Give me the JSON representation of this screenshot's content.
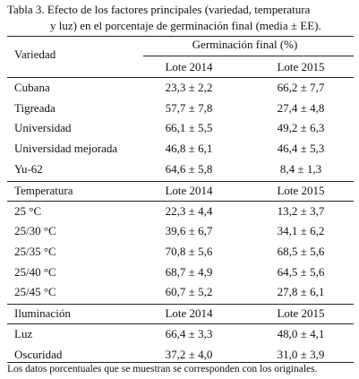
{
  "caption": [
    "Tabla 3. Efecto de los factores principales (variedad, temperatura",
    "y luz) en el porcentaje de germinación final (media ± EE)."
  ],
  "table": {
    "group_header": "Germinación final (%)",
    "sections": [
      {
        "label": "Variedad",
        "columns": [
          "Lote 2014",
          "Lote 2015"
        ],
        "rows": [
          [
            "Cubana",
            "23,3 ± 2,2",
            "66,2 ± 7,7"
          ],
          [
            "Tigreada",
            "57,7 ± 7,8",
            "27,4 ± 4,8"
          ],
          [
            "Universidad",
            "66,1 ± 5,5",
            "49,2 ± 6,3"
          ],
          [
            "Universidad mejorada",
            "46,8 ± 6,1",
            "46,4 ± 5,3"
          ],
          [
            "Yu-62",
            "64,6 ± 5,8",
            "8,4 ± 1,3"
          ]
        ]
      },
      {
        "label": "Temperatura",
        "columns": [
          "Lote 2014",
          "Lote 2015"
        ],
        "rows": [
          [
            "25 °C",
            "22,3 ± 4,4",
            "13,2 ± 3,7"
          ],
          [
            "25/30 °C",
            "39,6 ± 6,7",
            "34,1 ± 6,2"
          ],
          [
            "25/35 °C",
            "70,8 ± 5,6",
            "68,5 ± 5,6"
          ],
          [
            "25/40 °C",
            "68,7 ± 4,9",
            "64,5 ± 5,6"
          ],
          [
            "25/45 °C",
            "60,7 ± 5,2",
            "27,8 ± 6,1"
          ]
        ]
      },
      {
        "label": "Iluminación",
        "columns": [
          "Lote 2014",
          "Lote 2015"
        ],
        "rows": [
          [
            "Luz",
            "66,4 ± 3,3",
            "48,0 ± 4,1"
          ],
          [
            "Oscuridad",
            "37,2 ± 4,0",
            "31,0 ± 3,9"
          ]
        ]
      }
    ]
  },
  "footnote": "Los datos porcentuales que se muestran se corresponden con los originales."
}
